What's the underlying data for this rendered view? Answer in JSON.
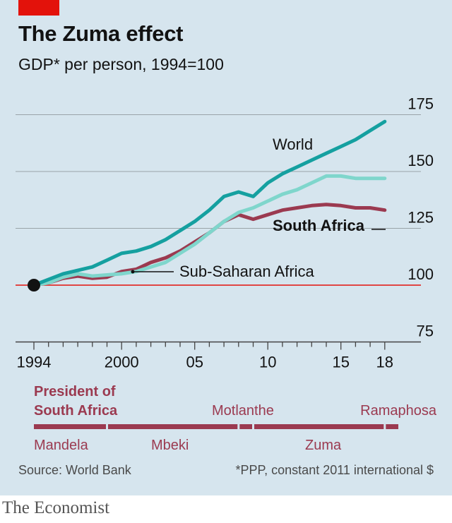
{
  "header": {
    "title": "The Zuma effect",
    "subtitle": "GDP* per person, 1994=100"
  },
  "footer": {
    "source": "Source: World Bank",
    "footnote": "*PPP, constant 2011 international $",
    "brand": "The Economist"
  },
  "colors": {
    "world": "#15a0a0",
    "ssa": "#7fd6cc",
    "south_africa": "#9b3a50",
    "baseline": "#e3120b",
    "grid": "#9aa3a8",
    "presidents": "#9b3a50"
  },
  "chart_data": {
    "type": "line",
    "ylim": [
      75,
      175
    ],
    "xlim": [
      1993,
      2019
    ],
    "y_ticks": [
      75,
      100,
      125,
      150,
      175
    ],
    "x_ticks": [
      {
        "value": 1994,
        "label": "1994"
      },
      {
        "value": 2000,
        "label": "2000"
      },
      {
        "value": 2005,
        "label": "05"
      },
      {
        "value": 2010,
        "label": "10"
      },
      {
        "value": 2015,
        "label": "15"
      },
      {
        "value": 2018,
        "label": "18"
      }
    ],
    "baseline": 100,
    "x": [
      1994,
      1995,
      1996,
      1997,
      1998,
      1999,
      2000,
      2001,
      2002,
      2003,
      2004,
      2005,
      2006,
      2007,
      2008,
      2009,
      2010,
      2011,
      2012,
      2013,
      2014,
      2015,
      2016,
      2017,
      2018
    ],
    "series": [
      {
        "key": "world",
        "name": "World",
        "values": [
          100,
          102.5,
          105,
          106.5,
          108,
          111,
          114,
          115,
          117,
          120,
          124,
          128,
          133,
          139,
          141,
          139,
          145,
          149,
          152,
          155,
          158,
          161,
          164,
          168,
          172
        ]
      },
      {
        "key": "ssa",
        "name": "Sub-Saharan Africa",
        "values": [
          100,
          101,
          103.5,
          105,
          104,
          104.5,
          105,
          106,
          108,
          110,
          114,
          118,
          123,
          128,
          132,
          134,
          137,
          140,
          142,
          145,
          148,
          148,
          147,
          147,
          147
        ]
      },
      {
        "key": "south_africa",
        "name": "South Africa",
        "values": [
          100,
          101,
          103,
          104,
          103,
          103.5,
          106,
          107,
          110,
          112,
          115,
          119,
          123,
          128,
          131,
          129,
          131,
          133,
          134,
          135,
          135.5,
          135,
          134,
          134,
          133
        ]
      }
    ],
    "presidents": {
      "heading": [
        "President of",
        "South Africa"
      ],
      "terms": [
        {
          "name": "Mandela",
          "start": 1994,
          "end": 1999
        },
        {
          "name": "Mbeki",
          "start": 1999,
          "end": 2008
        },
        {
          "name": "Motlanthe",
          "start": 2008,
          "end": 2009
        },
        {
          "name": "Zuma",
          "start": 2009,
          "end": 2018
        },
        {
          "name": "Ramaphosa",
          "start": 2018,
          "end": 2019
        }
      ]
    }
  }
}
